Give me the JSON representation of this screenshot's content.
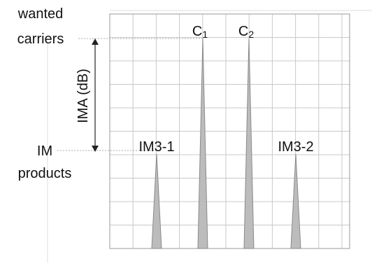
{
  "left_labels": {
    "wanted": [
      "wanted",
      "carriers"
    ],
    "im": [
      "IM",
      "products"
    ]
  },
  "axis_label": "IMA (dB)",
  "peaks": [
    {
      "label": "IM3-1"
    },
    {
      "label": "C",
      "sub": "1"
    },
    {
      "label": "C",
      "sub": "2"
    },
    {
      "label": "IM3-2"
    }
  ]
}
